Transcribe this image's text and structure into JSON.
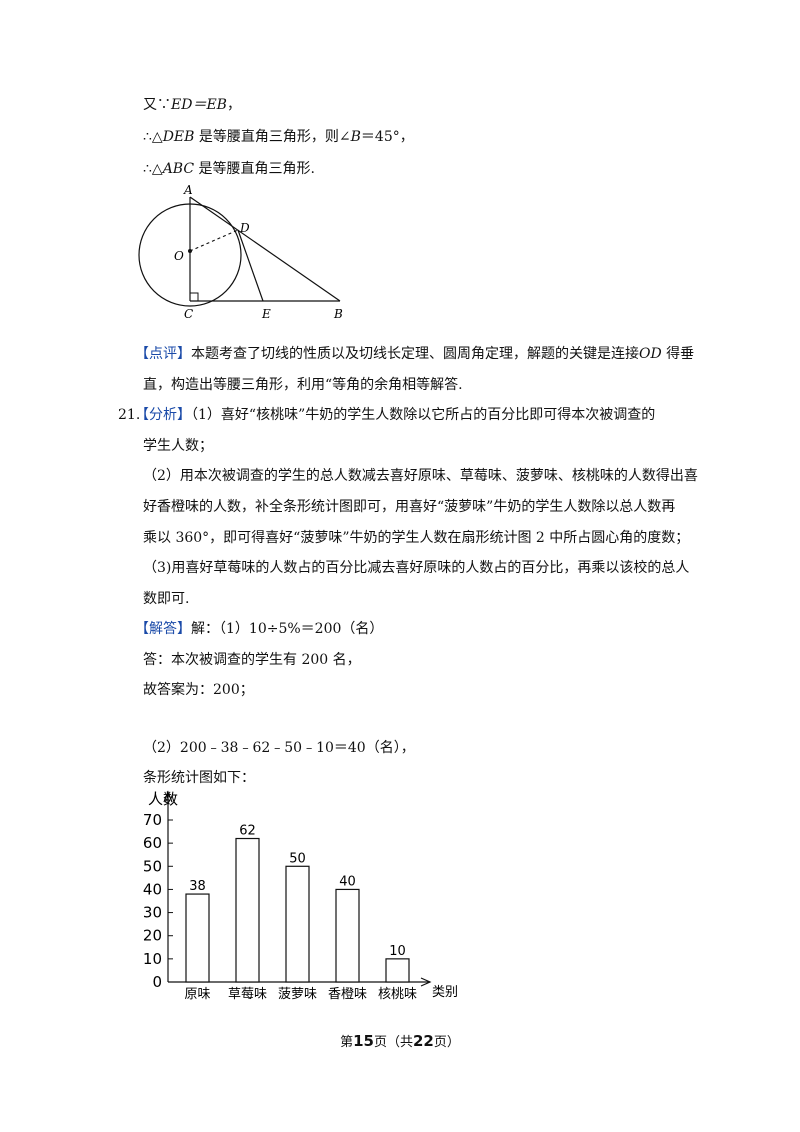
{
  "proof": {
    "line1": {
      "prefix": "又∵",
      "math": "ED＝EB",
      "suffix": "，"
    },
    "line2": {
      "prefix": "∴△",
      "math": "DEB",
      "middle": " 是等腰直角三角形，则∠",
      "math2": "B",
      "suffix": "＝45°，"
    },
    "line3": {
      "prefix": "∴△",
      "math": "ABC",
      "suffix": " 是等腰直角三角形."
    }
  },
  "geometry_labels": {
    "A": "A",
    "D": "D",
    "O": "O",
    "C": "C",
    "E": "E",
    "B": "B"
  },
  "comment": {
    "tag": "【点评】",
    "text1": "本题考查了切线的性质以及切线长定理、圆周角定理，解题的关键是连接",
    "math": "OD",
    "text1_end": " 得垂",
    "text2": "直，构造出等腰三角形，利用“等角的余角相等解答."
  },
  "q21": {
    "number": "21.",
    "analysis_tag": "【分析】",
    "analysis1": "（1）喜好“核桃味”牛奶的学生人数除以它所占的百分比即可得本次被调查的",
    "analysis1b": "学生人数；",
    "analysis2a": "（2）用本次被调查的学生的总人数减去喜好原味、草莓味、菠萝味、核桃味的人数得出喜",
    "analysis2b": "好香橙味的人数，补全条形统计图即可，用喜好“菠萝味”牛奶的学生人数除以总人数再",
    "analysis2c": "乘以 360°，即可得喜好“菠萝味”牛奶的学生人数在扇形统计图 2 中所占圆心角的度数；",
    "analysis3a": "（3)用喜好草莓味的人数占的百分比减去喜好原味的人数占的百分比，再乘以该校的总人",
    "analysis3b": "数即可.",
    "answer_tag": "【解答】",
    "answer1": "解：（1）10÷5%＝200（名）",
    "answer2": "答：本次被调查的学生有 200 名，",
    "answer3": "故答案为：200；",
    "part2": "（2）200﹣38﹣62﹣50﹣10＝40（名），",
    "part2b": "条形统计图如下："
  },
  "chart_data": {
    "type": "bar",
    "ylabel": "人数",
    "xlabel": "类别",
    "categories": [
      "原味",
      "草莓味",
      "菠萝味",
      "香橙味",
      "核桃味"
    ],
    "values": [
      38,
      62,
      50,
      40,
      10
    ],
    "data_labels": [
      "38",
      "62",
      "50",
      "40",
      "10"
    ],
    "yticks": [
      0,
      10,
      20,
      30,
      40,
      50,
      60,
      70
    ],
    "ylim": [
      0,
      70
    ]
  },
  "footer": {
    "prefix": "第",
    "page": "15",
    "middle": "页（共",
    "total": "22",
    "suffix": "页）"
  }
}
